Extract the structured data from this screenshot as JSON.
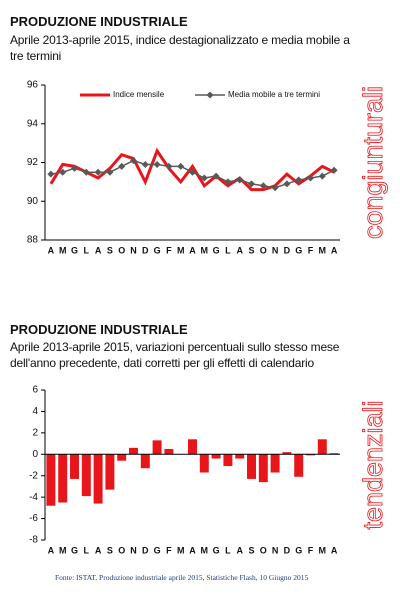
{
  "chart_data": [
    {
      "type": "line",
      "title": "PRODUZIONE INDUSTRIALE",
      "subtitle": "Aprile 2013-aprile 2015, indice destagionalizzato e media mobile a tre termini",
      "side_label": "congiunturali",
      "categories": [
        "A",
        "M",
        "G",
        "L",
        "A",
        "S",
        "O",
        "N",
        "D",
        "G",
        "F",
        "M",
        "A",
        "M",
        "G",
        "L",
        "A",
        "S",
        "O",
        "N",
        "D",
        "G",
        "F",
        "M",
        "A"
      ],
      "series": [
        {
          "name": "Indice mensile",
          "color": "#e8161b",
          "values": [
            90.9,
            91.9,
            91.8,
            91.5,
            91.2,
            91.7,
            92.4,
            92.2,
            91.0,
            92.6,
            91.7,
            91.0,
            91.8,
            90.8,
            91.3,
            90.8,
            91.2,
            90.6,
            90.6,
            90.8,
            91.4,
            90.9,
            91.3,
            91.8,
            91.5
          ]
        },
        {
          "name": "Media mobile a tre termini",
          "color": "#595959",
          "marker": "diamond",
          "values": [
            91.4,
            91.5,
            91.7,
            91.5,
            91.5,
            91.5,
            91.8,
            92.1,
            91.9,
            91.9,
            91.8,
            91.8,
            91.5,
            91.2,
            91.3,
            91.0,
            91.1,
            90.9,
            90.8,
            90.7,
            90.9,
            91.1,
            91.2,
            91.3,
            91.6
          ]
        }
      ],
      "ylim": [
        88,
        96
      ],
      "yticks": [
        88,
        90,
        92,
        94,
        96
      ]
    },
    {
      "type": "bar",
      "title": "PRODUZIONE INDUSTRIALE",
      "subtitle": "Aprile 2013-aprile 2015, variazioni percentuali sullo stesso mese dell'anno precedente, dati corretti per gli effetti di calendario",
      "side_label": "tendenziali",
      "categories": [
        "A",
        "M",
        "G",
        "L",
        "A",
        "S",
        "O",
        "N",
        "D",
        "G",
        "F",
        "M",
        "A",
        "M",
        "G",
        "L",
        "A",
        "S",
        "O",
        "N",
        "D",
        "G",
        "F",
        "M",
        "A"
      ],
      "color": "#e8161b",
      "values": [
        -4.8,
        -4.5,
        -2.3,
        -3.9,
        -4.6,
        -3.3,
        -0.6,
        0.6,
        -1.3,
        1.3,
        0.5,
        0.0,
        1.4,
        -1.7,
        -0.4,
        -1.1,
        -0.4,
        -2.3,
        -2.6,
        -1.7,
        0.2,
        -2.1,
        -0.1,
        1.4,
        0.1
      ],
      "ylim": [
        -8,
        6
      ],
      "yticks": [
        -8,
        -6,
        -4,
        -2,
        0,
        2,
        4,
        6
      ]
    }
  ],
  "source": "Fonte: ISTAT, Produzione industriale aprile 2015, Statistiche Flash, 10 Giugno 2015"
}
